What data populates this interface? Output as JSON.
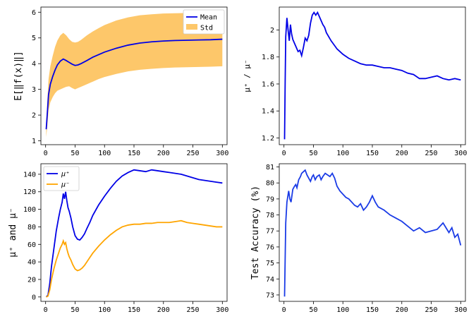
{
  "chart_data": [
    {
      "type": "line",
      "ylabel": "E[‖f(x)‖]",
      "xlim": [
        -8,
        308
      ],
      "ylim": [
        0.85,
        6.2
      ],
      "xticks": [
        0,
        50,
        100,
        150,
        200,
        250,
        300
      ],
      "yticks": [
        1,
        2,
        3,
        4,
        5,
        6
      ],
      "legend": "top-right",
      "legend_entries": [
        "Mean",
        "Std"
      ],
      "x": [
        1,
        3,
        5,
        8,
        12,
        16,
        20,
        25,
        30,
        35,
        40,
        45,
        50,
        55,
        60,
        70,
        80,
        90,
        100,
        120,
        140,
        160,
        180,
        200,
        220,
        240,
        260,
        280,
        300
      ],
      "mean": [
        1.45,
        2.1,
        2.8,
        3.2,
        3.5,
        3.75,
        3.95,
        4.1,
        4.18,
        4.12,
        4.05,
        3.98,
        3.93,
        3.95,
        4.0,
        4.12,
        4.25,
        4.35,
        4.45,
        4.6,
        4.72,
        4.8,
        4.85,
        4.88,
        4.9,
        4.91,
        4.92,
        4.93,
        4.95
      ],
      "upper": [
        1.7,
        2.6,
        3.4,
        3.9,
        4.3,
        4.65,
        4.9,
        5.1,
        5.2,
        5.1,
        4.95,
        4.85,
        4.82,
        4.85,
        4.92,
        5.1,
        5.25,
        5.38,
        5.5,
        5.68,
        5.8,
        5.88,
        5.92,
        5.95,
        5.96,
        5.97,
        5.98,
        5.98,
        5.99
      ],
      "lower": [
        1.15,
        1.6,
        2.2,
        2.5,
        2.7,
        2.85,
        2.95,
        3.0,
        3.05,
        3.1,
        3.12,
        3.05,
        3.0,
        3.05,
        3.1,
        3.2,
        3.3,
        3.4,
        3.48,
        3.6,
        3.7,
        3.76,
        3.8,
        3.83,
        3.85,
        3.86,
        3.87,
        3.88,
        3.9
      ],
      "colors": {
        "mean": "#0000e6",
        "std": "#fdc76a"
      }
    },
    {
      "type": "line",
      "ylabel": "μ⁺ / μ⁻",
      "xlim": [
        -8,
        308
      ],
      "ylim": [
        1.15,
        2.17
      ],
      "xticks": [
        0,
        50,
        100,
        150,
        200,
        250,
        300
      ],
      "yticks": [
        1.2,
        1.4,
        1.6,
        1.8,
        2.0
      ],
      "x": [
        1,
        2,
        3,
        5,
        7,
        9,
        11,
        13,
        15,
        18,
        21,
        24,
        27,
        30,
        33,
        36,
        39,
        42,
        45,
        48,
        51,
        54,
        57,
        60,
        63,
        66,
        69,
        72,
        76,
        80,
        85,
        90,
        95,
        100,
        110,
        120,
        130,
        140,
        150,
        160,
        170,
        180,
        190,
        200,
        210,
        220,
        230,
        240,
        250,
        260,
        270,
        280,
        290,
        300
      ],
      "y": [
        1.19,
        1.6,
        1.95,
        2.09,
        2.0,
        1.92,
        2.04,
        1.97,
        1.93,
        1.9,
        1.87,
        1.84,
        1.85,
        1.81,
        1.87,
        1.94,
        1.92,
        1.96,
        2.05,
        2.11,
        2.13,
        2.11,
        2.13,
        2.1,
        2.07,
        2.04,
        2.02,
        1.98,
        1.95,
        1.92,
        1.89,
        1.86,
        1.84,
        1.82,
        1.79,
        1.77,
        1.75,
        1.74,
        1.74,
        1.73,
        1.72,
        1.72,
        1.71,
        1.7,
        1.68,
        1.67,
        1.64,
        1.64,
        1.65,
        1.66,
        1.64,
        1.63,
        1.64,
        1.63
      ],
      "color": "#0000e6"
    },
    {
      "type": "line",
      "ylabel": "μ⁺ and μ⁻",
      "xlim": [
        -8,
        308
      ],
      "ylim": [
        -5,
        152
      ],
      "xticks": [
        0,
        50,
        100,
        150,
        200,
        250,
        300
      ],
      "yticks": [
        0,
        20,
        40,
        60,
        80,
        100,
        120,
        140
      ],
      "legend": "top-left",
      "series": [
        {
          "name": "μ⁺",
          "color": "#0000e6",
          "x": [
            1,
            4,
            7,
            10,
            14,
            18,
            22,
            25,
            28,
            30,
            32,
            34,
            36,
            38,
            40,
            43,
            46,
            50,
            54,
            58,
            62,
            66,
            70,
            75,
            80,
            90,
            100,
            110,
            120,
            130,
            140,
            150,
            160,
            170,
            180,
            190,
            200,
            210,
            220,
            230,
            240,
            250,
            260,
            270,
            280,
            290,
            300
          ],
          "y": [
            0,
            2,
            15,
            35,
            55,
            75,
            90,
            100,
            108,
            118,
            112,
            120,
            110,
            102,
            98,
            90,
            80,
            70,
            66,
            65,
            68,
            72,
            78,
            85,
            93,
            105,
            115,
            124,
            132,
            138,
            142,
            145,
            144,
            143,
            145,
            144,
            143,
            142,
            141,
            140,
            138,
            136,
            134,
            133,
            132,
            131,
            130
          ]
        },
        {
          "name": "μ⁻",
          "color": "#ffa500",
          "x": [
            1,
            4,
            7,
            10,
            14,
            18,
            22,
            25,
            28,
            30,
            32,
            34,
            36,
            38,
            40,
            43,
            46,
            50,
            54,
            58,
            62,
            66,
            70,
            75,
            80,
            90,
            100,
            110,
            120,
            130,
            140,
            150,
            160,
            170,
            180,
            190,
            200,
            210,
            220,
            230,
            240,
            250,
            260,
            270,
            280,
            290,
            300
          ],
          "y": [
            0,
            1,
            8,
            20,
            32,
            42,
            50,
            56,
            60,
            64,
            60,
            62,
            55,
            50,
            46,
            42,
            37,
            32,
            30,
            31,
            33,
            36,
            40,
            45,
            50,
            58,
            65,
            71,
            76,
            80,
            82,
            83,
            83,
            84,
            84,
            85,
            85,
            85,
            86,
            87,
            85,
            84,
            83,
            82,
            81,
            80,
            80
          ]
        }
      ]
    },
    {
      "type": "line",
      "ylabel": "Test Accuracy (%)",
      "xlim": [
        -8,
        308
      ],
      "ylim": [
        72.6,
        81.2
      ],
      "xticks": [
        0,
        50,
        100,
        150,
        200,
        250,
        300
      ],
      "yticks": [
        73,
        74,
        75,
        76,
        77,
        78,
        79,
        80,
        81
      ],
      "x": [
        1,
        3,
        5,
        8,
        10,
        12,
        15,
        18,
        20,
        22,
        25,
        28,
        30,
        33,
        36,
        39,
        42,
        45,
        48,
        50,
        53,
        56,
        60,
        63,
        66,
        70,
        74,
        78,
        82,
        86,
        90,
        95,
        100,
        105,
        110,
        115,
        120,
        125,
        130,
        135,
        140,
        145,
        150,
        155,
        160,
        170,
        180,
        190,
        200,
        210,
        220,
        230,
        240,
        250,
        260,
        270,
        280,
        285,
        290,
        295,
        300
      ],
      "y": [
        72.9,
        77.5,
        78.8,
        79.5,
        79.0,
        78.8,
        79.6,
        79.8,
        79.9,
        79.7,
        80.2,
        80.4,
        80.6,
        80.7,
        80.8,
        80.5,
        80.3,
        80.1,
        80.4,
        80.5,
        80.2,
        80.4,
        80.5,
        80.2,
        80.4,
        80.6,
        80.5,
        80.4,
        80.6,
        80.3,
        79.8,
        79.5,
        79.3,
        79.1,
        79.0,
        78.8,
        78.6,
        78.5,
        78.7,
        78.3,
        78.5,
        78.8,
        79.2,
        78.8,
        78.5,
        78.3,
        78.0,
        77.8,
        77.6,
        77.3,
        77.0,
        77.2,
        76.9,
        77.0,
        77.1,
        77.5,
        76.9,
        77.2,
        76.6,
        76.8,
        76.1
      ]
    }
  ]
}
